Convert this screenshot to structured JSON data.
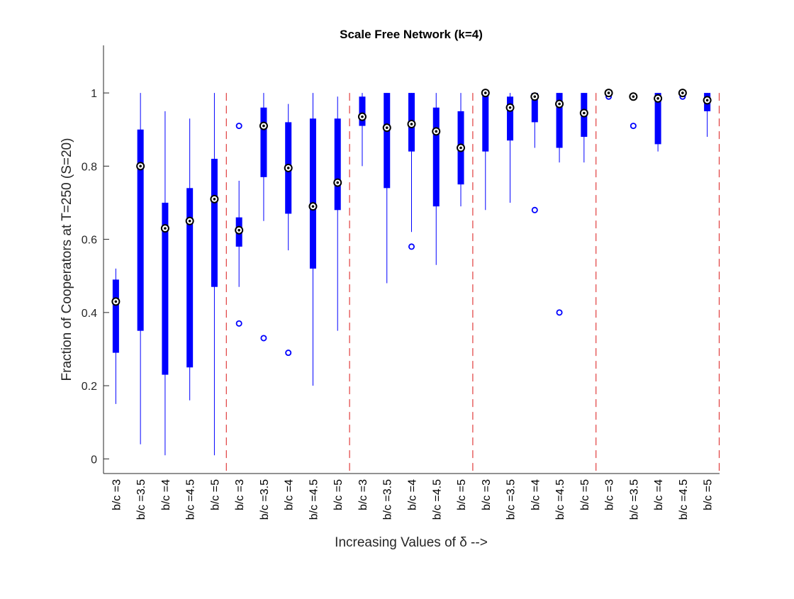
{
  "chart_data": {
    "type": "box",
    "title": "Scale Free Network (k=4)",
    "xlabel": "Increasing Values of δ -->",
    "ylabel": "Fraction of Cooperators at T=250 (S=20)",
    "ylim": [
      -0.04,
      1.13
    ],
    "yticks": [
      0,
      0.2,
      0.4,
      0.6,
      0.8,
      1
    ],
    "grid": false,
    "group_separators_after": [
      5,
      10,
      15,
      20,
      25
    ],
    "colors": {
      "box": "#0000ff",
      "median_outer": "#000000",
      "median_inner": "#ffffff",
      "outlier": "#0000ff",
      "separator": "#e03c3c",
      "axis": "#262626"
    },
    "categories": [
      "b/c =3",
      "b/c =3.5",
      "b/c =4",
      "b/c =4.5",
      "b/c =5",
      "b/c =3",
      "b/c =3.5",
      "b/c =4",
      "b/c =4.5",
      "b/c =5",
      "b/c =3",
      "b/c =3.5",
      "b/c =4",
      "b/c =4.5",
      "b/c =5",
      "b/c =3",
      "b/c =3.5",
      "b/c =4",
      "b/c =4.5",
      "b/c =5",
      "b/c =3",
      "b/c =3.5",
      "b/c =4",
      "b/c =4.5",
      "b/c =5"
    ],
    "boxes": [
      {
        "low": 0.15,
        "q1": 0.29,
        "median": 0.43,
        "q3": 0.49,
        "high": 0.52,
        "outliers": []
      },
      {
        "low": 0.04,
        "q1": 0.35,
        "median": 0.8,
        "q3": 0.9,
        "high": 1.0,
        "outliers": []
      },
      {
        "low": 0.01,
        "q1": 0.23,
        "median": 0.63,
        "q3": 0.7,
        "high": 0.95,
        "outliers": []
      },
      {
        "low": 0.16,
        "q1": 0.25,
        "median": 0.65,
        "q3": 0.74,
        "high": 0.93,
        "outliers": []
      },
      {
        "low": 0.01,
        "q1": 0.47,
        "median": 0.71,
        "q3": 0.82,
        "high": 1.0,
        "outliers": []
      },
      {
        "low": 0.47,
        "q1": 0.58,
        "median": 0.625,
        "q3": 0.66,
        "high": 0.76,
        "outliers": [
          0.91,
          0.37
        ]
      },
      {
        "low": 0.65,
        "q1": 0.77,
        "median": 0.91,
        "q3": 0.96,
        "high": 1.0,
        "outliers": [
          0.33
        ]
      },
      {
        "low": 0.57,
        "q1": 0.67,
        "median": 0.795,
        "q3": 0.92,
        "high": 0.97,
        "outliers": [
          0.29
        ]
      },
      {
        "low": 0.2,
        "q1": 0.52,
        "median": 0.69,
        "q3": 0.93,
        "high": 1.0,
        "outliers": []
      },
      {
        "low": 0.35,
        "q1": 0.68,
        "median": 0.755,
        "q3": 0.93,
        "high": 0.99,
        "outliers": []
      },
      {
        "low": 0.8,
        "q1": 0.91,
        "median": 0.935,
        "q3": 0.99,
        "high": 1.0,
        "outliers": []
      },
      {
        "low": 0.48,
        "q1": 0.74,
        "median": 0.905,
        "q3": 1.0,
        "high": 1.0,
        "outliers": []
      },
      {
        "low": 0.62,
        "q1": 0.84,
        "median": 0.915,
        "q3": 1.0,
        "high": 1.0,
        "outliers": [
          0.58
        ]
      },
      {
        "low": 0.53,
        "q1": 0.69,
        "median": 0.895,
        "q3": 0.96,
        "high": 1.0,
        "outliers": []
      },
      {
        "low": 0.69,
        "q1": 0.75,
        "median": 0.85,
        "q3": 0.95,
        "high": 1.0,
        "outliers": []
      },
      {
        "low": 0.68,
        "q1": 0.84,
        "median": 1.0,
        "q3": 1.0,
        "high": 1.0,
        "outliers": []
      },
      {
        "low": 0.7,
        "q1": 0.87,
        "median": 0.96,
        "q3": 0.99,
        "high": 1.0,
        "outliers": []
      },
      {
        "low": 0.85,
        "q1": 0.92,
        "median": 0.99,
        "q3": 1.0,
        "high": 1.0,
        "outliers": [
          0.68
        ]
      },
      {
        "low": 0.81,
        "q1": 0.85,
        "median": 0.97,
        "q3": 1.0,
        "high": 1.0,
        "outliers": [
          0.4
        ]
      },
      {
        "low": 0.81,
        "q1": 0.88,
        "median": 0.945,
        "q3": 1.0,
        "high": 1.0,
        "outliers": []
      },
      {
        "low": 1.0,
        "q1": 1.0,
        "median": 1.0,
        "q3": 1.0,
        "high": 1.0,
        "outliers": [
          0.99
        ]
      },
      {
        "low": 0.99,
        "q1": 0.99,
        "median": 0.99,
        "q3": 0.99,
        "high": 0.99,
        "outliers": [
          0.91
        ]
      },
      {
        "low": 0.84,
        "q1": 0.86,
        "median": 0.985,
        "q3": 1.0,
        "high": 1.0,
        "outliers": []
      },
      {
        "low": 1.0,
        "q1": 1.0,
        "median": 1.0,
        "q3": 1.0,
        "high": 1.0,
        "outliers": [
          0.99
        ]
      },
      {
        "low": 0.88,
        "q1": 0.95,
        "median": 0.98,
        "q3": 1.0,
        "high": 1.0,
        "outliers": []
      }
    ]
  }
}
